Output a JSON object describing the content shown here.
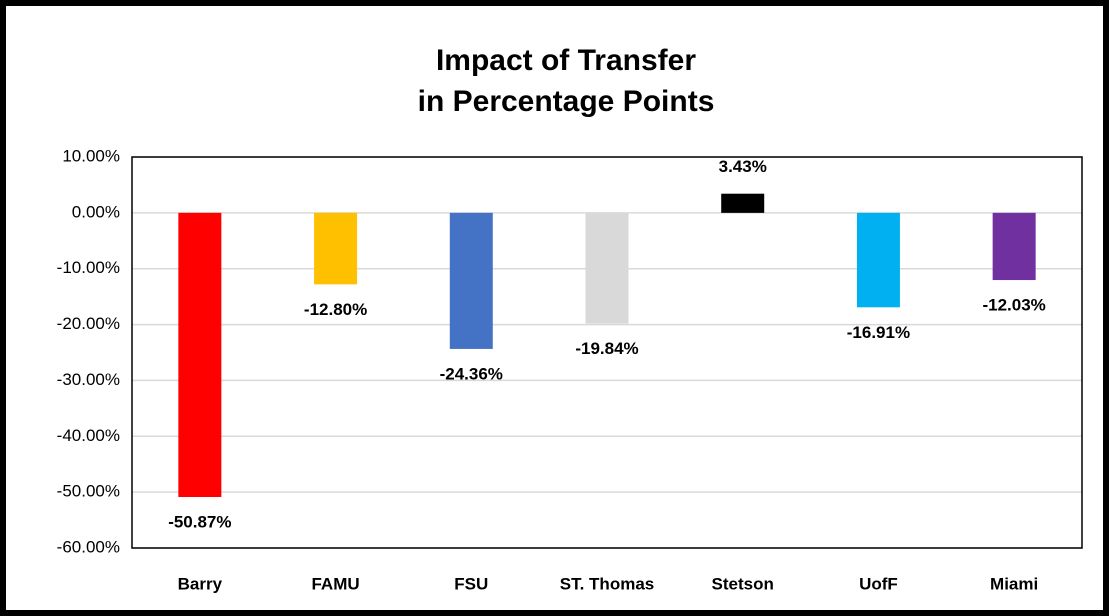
{
  "chart_data": {
    "type": "bar",
    "title": [
      "Impact of Transfer",
      "in Percentage Points"
    ],
    "categories": [
      "Barry",
      "FAMU",
      "FSU",
      "ST. Thomas",
      "Stetson",
      "UofF",
      "Miami"
    ],
    "values": [
      -50.87,
      -12.8,
      -24.36,
      -19.84,
      3.43,
      -16.91,
      -12.03
    ],
    "value_labels": [
      "-50.87%",
      "-12.80%",
      "-24.36%",
      "-19.84%",
      "3.43%",
      "-16.91%",
      "-12.03%"
    ],
    "colors": [
      "#ff0000",
      "#ffc000",
      "#4472c4",
      "#d9d9d9",
      "#000000",
      "#00b0f0",
      "#7030a0"
    ],
    "ylim": [
      -60,
      10
    ],
    "yticks": [
      {
        "value": -60,
        "label": "-60.00%"
      },
      {
        "value": -50,
        "label": "-50.00%"
      },
      {
        "value": -40,
        "label": "-40.00%"
      },
      {
        "value": -30,
        "label": "-30.00%"
      },
      {
        "value": -20,
        "label": "-20.00%"
      },
      {
        "value": -10,
        "label": "-10.00%"
      },
      {
        "value": 0,
        "label": "0.00%"
      },
      {
        "value": 10,
        "label": "10.00%"
      }
    ],
    "grid": true
  }
}
